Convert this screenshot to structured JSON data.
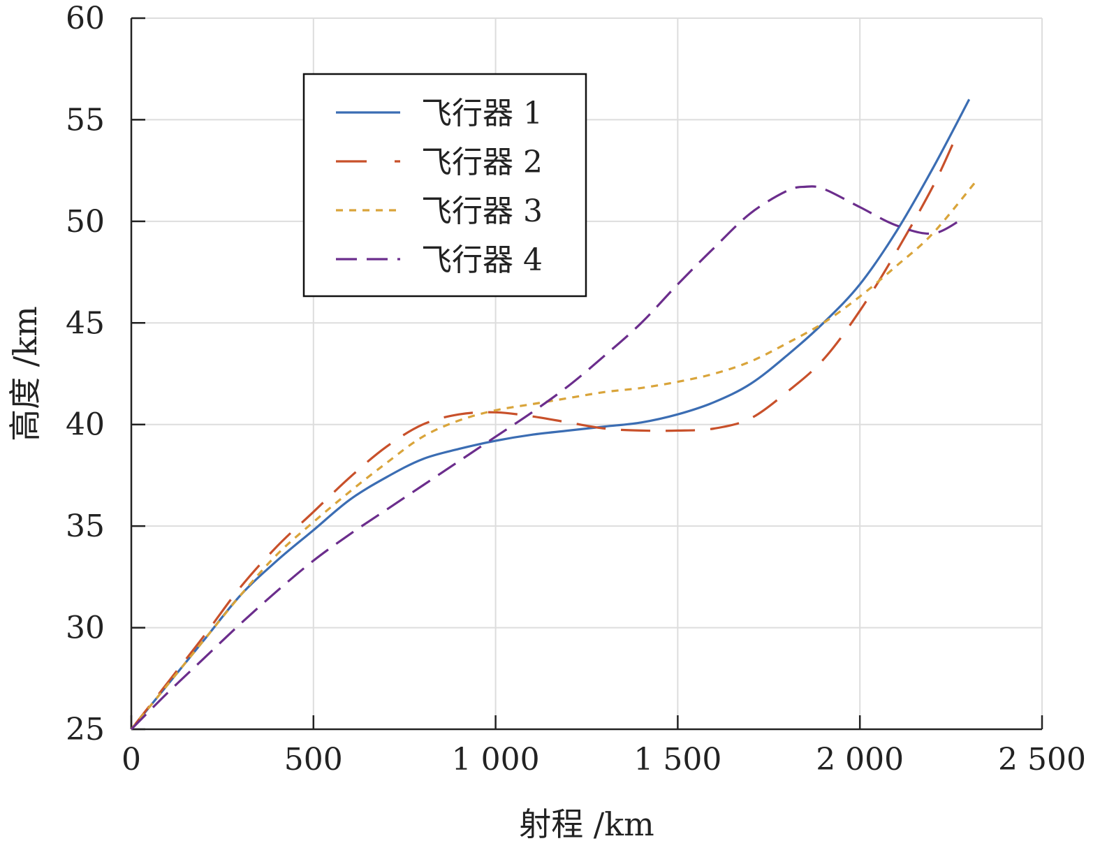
{
  "chart_data": {
    "type": "line",
    "xlabel": "射程 /km",
    "ylabel": "高度 /km",
    "xlim": [
      0,
      2500
    ],
    "ylim": [
      25,
      60
    ],
    "xticks": [
      0,
      500,
      1000,
      1500,
      2000,
      2500
    ],
    "xtick_labels": [
      "0",
      "500",
      "1 000",
      "1 500",
      "2 000",
      "2 500"
    ],
    "yticks": [
      25,
      30,
      35,
      40,
      45,
      50,
      55,
      60
    ],
    "ytick_labels": [
      "25",
      "30",
      "35",
      "40",
      "45",
      "50",
      "55",
      "60"
    ],
    "grid": true,
    "legend_position": "upper-left-center",
    "series": [
      {
        "name": "飞行器 1",
        "color": "#3b6db3",
        "style": "solid",
        "x": [
          0,
          100,
          200,
          300,
          400,
          500,
          600,
          700,
          800,
          900,
          1000,
          1100,
          1200,
          1300,
          1400,
          1500,
          1600,
          1700,
          1800,
          1900,
          2000,
          2100,
          2200,
          2300
        ],
        "y": [
          25,
          27.2,
          29.4,
          31.6,
          33.3,
          34.8,
          36.3,
          37.4,
          38.3,
          38.8,
          39.2,
          39.5,
          39.7,
          39.9,
          40.1,
          40.5,
          41.1,
          42.0,
          43.4,
          45.0,
          46.9,
          49.5,
          52.6,
          56.0
        ]
      },
      {
        "name": "飞行器 2",
        "color": "#c8502a",
        "style": "longdash",
        "x": [
          0,
          100,
          200,
          300,
          400,
          500,
          600,
          700,
          800,
          900,
          1000,
          1100,
          1200,
          1300,
          1400,
          1500,
          1600,
          1700,
          1800,
          1900,
          2000,
          2100,
          2200,
          2260
        ],
        "y": [
          25,
          27.3,
          29.6,
          32.0,
          34.0,
          35.7,
          37.4,
          38.9,
          40.0,
          40.5,
          40.6,
          40.4,
          40.1,
          39.8,
          39.7,
          39.7,
          39.8,
          40.3,
          41.6,
          43.2,
          45.6,
          48.5,
          51.7,
          54.0
        ]
      },
      {
        "name": "飞行器 3",
        "color": "#d9a43a",
        "style": "dotted",
        "x": [
          0,
          100,
          200,
          300,
          400,
          500,
          600,
          700,
          800,
          900,
          1000,
          1100,
          1200,
          1300,
          1400,
          1500,
          1600,
          1700,
          1800,
          1900,
          2000,
          2100,
          2200,
          2320
        ],
        "y": [
          25,
          27.2,
          29.4,
          31.6,
          33.6,
          35.2,
          36.7,
          38.1,
          39.4,
          40.2,
          40.7,
          41.0,
          41.3,
          41.6,
          41.8,
          42.1,
          42.5,
          43.1,
          44.0,
          45.0,
          46.3,
          47.8,
          49.4,
          52.0
        ]
      },
      {
        "name": "飞行器 4",
        "color": "#6b2d8c",
        "style": "dashdot",
        "x": [
          0,
          100,
          200,
          300,
          400,
          500,
          600,
          700,
          800,
          900,
          1000,
          1100,
          1200,
          1300,
          1400,
          1500,
          1600,
          1700,
          1800,
          1850,
          1900,
          2000,
          2100,
          2200,
          2280
        ],
        "y": [
          25,
          26.8,
          28.5,
          30.2,
          31.8,
          33.3,
          34.6,
          35.8,
          37.0,
          38.2,
          39.4,
          40.6,
          41.9,
          43.4,
          45.0,
          46.9,
          48.7,
          50.4,
          51.5,
          51.7,
          51.6,
          50.7,
          49.8,
          49.4,
          50.1
        ]
      }
    ]
  }
}
